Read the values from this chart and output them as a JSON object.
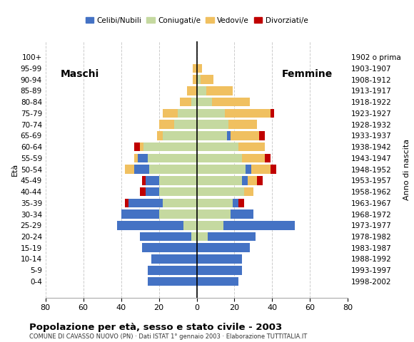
{
  "age_groups": [
    "0-4",
    "5-9",
    "10-14",
    "15-19",
    "20-24",
    "25-29",
    "30-34",
    "35-39",
    "40-44",
    "45-49",
    "50-54",
    "55-59",
    "60-64",
    "65-69",
    "70-74",
    "75-79",
    "80-84",
    "85-89",
    "90-94",
    "95-99",
    "100+"
  ],
  "birth_years": [
    "1998-2002",
    "1993-1997",
    "1988-1992",
    "1983-1987",
    "1978-1982",
    "1973-1977",
    "1968-1972",
    "1963-1967",
    "1958-1962",
    "1953-1957",
    "1948-1952",
    "1943-1947",
    "1938-1942",
    "1933-1937",
    "1928-1932",
    "1923-1927",
    "1918-1922",
    "1913-1917",
    "1908-1912",
    "1903-1907",
    "1902 o prima"
  ],
  "male_celibe": [
    26,
    26,
    24,
    29,
    27,
    35,
    20,
    18,
    7,
    7,
    8,
    5,
    0,
    0,
    0,
    0,
    0,
    0,
    0,
    0,
    0
  ],
  "male_coniugato": [
    0,
    0,
    0,
    0,
    3,
    7,
    20,
    18,
    20,
    20,
    25,
    26,
    28,
    18,
    12,
    10,
    3,
    0,
    0,
    0,
    0
  ],
  "male_vedovo": [
    0,
    0,
    0,
    0,
    0,
    0,
    0,
    0,
    0,
    0,
    5,
    2,
    2,
    3,
    8,
    8,
    6,
    5,
    2,
    2,
    0
  ],
  "male_divorziato": [
    0,
    0,
    0,
    0,
    0,
    0,
    0,
    2,
    3,
    2,
    0,
    0,
    3,
    0,
    0,
    0,
    0,
    0,
    0,
    0,
    0
  ],
  "female_celibe": [
    22,
    24,
    24,
    28,
    25,
    38,
    12,
    3,
    0,
    3,
    3,
    0,
    0,
    2,
    0,
    0,
    0,
    0,
    0,
    0,
    0
  ],
  "female_coniugato": [
    0,
    0,
    0,
    0,
    6,
    14,
    18,
    19,
    25,
    24,
    26,
    24,
    22,
    16,
    17,
    15,
    8,
    5,
    2,
    0,
    0
  ],
  "female_vedovo": [
    0,
    0,
    0,
    0,
    0,
    0,
    0,
    0,
    5,
    5,
    10,
    12,
    14,
    15,
    15,
    24,
    20,
    14,
    7,
    3,
    0
  ],
  "female_divorziato": [
    0,
    0,
    0,
    0,
    0,
    0,
    0,
    3,
    0,
    3,
    3,
    3,
    0,
    3,
    0,
    2,
    0,
    0,
    0,
    0,
    0
  ],
  "colors": {
    "celibe": "#4472c4",
    "coniugato": "#c5d9a0",
    "vedovo": "#f0c060",
    "divorziato": "#c00000"
  },
  "title": "Popolazione per età, sesso e stato civile - 2003",
  "subtitle": "COMUNE DI CAVASSO NUOVO (PN) · Dati ISTAT 1° gennaio 2003 · Elaborazione TUTTITALIA.IT",
  "xlabel_left": "Maschi",
  "xlabel_right": "Femmine",
  "ylabel_left": "Età",
  "ylabel_right": "Anno di nascita",
  "xlim": 80,
  "legend_labels": [
    "Celibi/Nubili",
    "Coniugati/e",
    "Vedovi/e",
    "Divorziati/e"
  ],
  "background_color": "#ffffff",
  "bar_height": 0.8
}
